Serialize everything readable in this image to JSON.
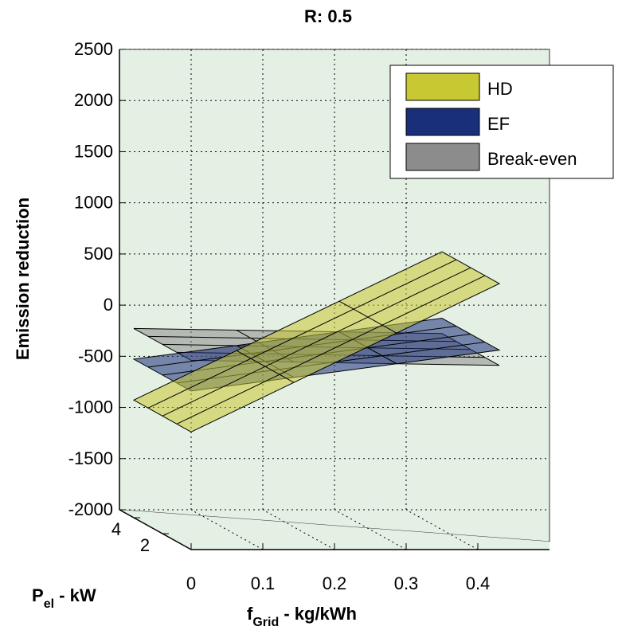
{
  "chart_data": {
    "type": "surface3d",
    "title": "R: 0.5",
    "zlabel": "Emission reduction",
    "xlabel": {
      "main": "f",
      "sub": "Grid",
      "rest": " - kg/kWh"
    },
    "ylabel": {
      "main": "P",
      "sub": "el",
      "rest": " - kW"
    },
    "x_ticks": [
      "0",
      "0.1",
      "0.2",
      "0.3",
      "0.4"
    ],
    "y_ticks": [
      "2",
      "4"
    ],
    "z_ticks": [
      "2500",
      "2000",
      "1500",
      "1000",
      "500",
      "0",
      "-500",
      "-1000",
      "-1500",
      "-2000"
    ],
    "xlim": [
      0,
      0.5
    ],
    "ylim": [
      0,
      5
    ],
    "zlim": [
      -2000,
      2500
    ],
    "grid": true,
    "legend_position": "top-right",
    "series": [
      {
        "name": "HD",
        "color": "#c8c832",
        "z_at_x0": -850,
        "z_at_xmax": 600
      },
      {
        "name": "EF",
        "color": "#1a2f7a",
        "z_at_x0": -450,
        "z_at_xmax": -50
      },
      {
        "name": "Break-even",
        "color": "#8c8c8c",
        "z_at_x0": -150,
        "z_at_xmax": -200
      }
    ]
  }
}
